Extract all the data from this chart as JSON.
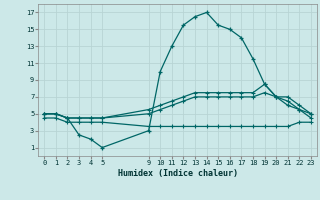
{
  "xlabel": "Humidex (Indice chaleur)",
  "bg_color": "#cce8e8",
  "grid_color": "#b8d4d4",
  "line_color": "#006666",
  "xlim": [
    -0.5,
    23.5
  ],
  "ylim": [
    0,
    18
  ],
  "xticks": [
    0,
    1,
    2,
    3,
    4,
    5,
    9,
    10,
    11,
    12,
    13,
    14,
    15,
    16,
    17,
    18,
    19,
    20,
    21,
    22,
    23
  ],
  "yticks": [
    1,
    3,
    5,
    7,
    9,
    11,
    13,
    15,
    17
  ],
  "series": {
    "main": {
      "x": [
        0,
        1,
        2,
        3,
        4,
        5,
        9,
        10,
        11,
        12,
        13,
        14,
        15,
        16,
        17,
        18,
        19,
        20,
        21,
        22,
        23
      ],
      "y": [
        5,
        5,
        4.5,
        2.5,
        2,
        1,
        3,
        10,
        13,
        15.5,
        16.5,
        17,
        15.5,
        15,
        14,
        11.5,
        8.5,
        7,
        6,
        5.5,
        5
      ]
    },
    "line2": {
      "x": [
        0,
        1,
        2,
        3,
        4,
        5,
        9,
        10,
        11,
        12,
        13,
        14,
        15,
        16,
        17,
        18,
        19,
        20,
        21,
        22,
        23
      ],
      "y": [
        5,
        5,
        4.5,
        4.5,
        4.5,
        4.5,
        5.5,
        6,
        6.5,
        7,
        7.5,
        7.5,
        7.5,
        7.5,
        7.5,
        7.5,
        8.5,
        7,
        7,
        6,
        5
      ]
    },
    "line3": {
      "x": [
        0,
        1,
        2,
        3,
        4,
        5,
        9,
        10,
        11,
        12,
        13,
        14,
        15,
        16,
        17,
        18,
        19,
        20,
        21,
        22,
        23
      ],
      "y": [
        5,
        5,
        4.5,
        4.5,
        4.5,
        4.5,
        5,
        5.5,
        6,
        6.5,
        7,
        7,
        7,
        7,
        7,
        7,
        7.5,
        7,
        6.5,
        5.5,
        4.5
      ]
    },
    "line4": {
      "x": [
        0,
        1,
        2,
        3,
        4,
        5,
        9,
        10,
        11,
        12,
        13,
        14,
        15,
        16,
        17,
        18,
        19,
        20,
        21,
        22,
        23
      ],
      "y": [
        4.5,
        4.5,
        4,
        4,
        4,
        4,
        3.5,
        3.5,
        3.5,
        3.5,
        3.5,
        3.5,
        3.5,
        3.5,
        3.5,
        3.5,
        3.5,
        3.5,
        3.5,
        4,
        4
      ]
    }
  }
}
